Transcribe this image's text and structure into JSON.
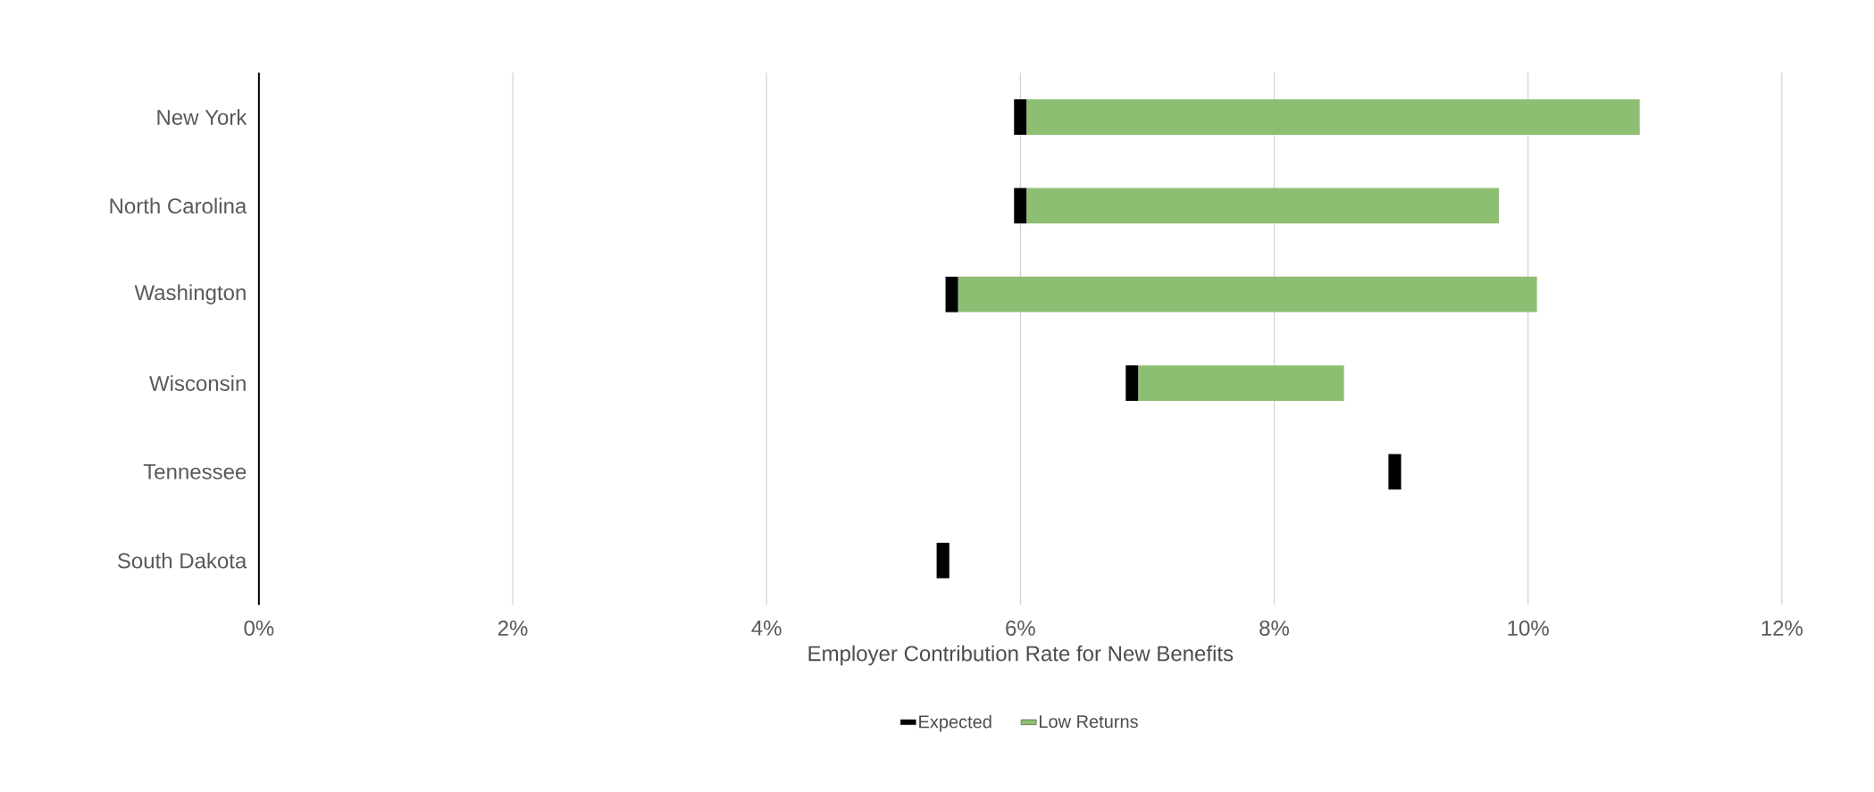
{
  "chart_data": {
    "type": "bar",
    "orientation": "horizontal",
    "xlabel": "Employer Contribution Rate for New Benefits",
    "categories": [
      "New York",
      "North Carolina",
      "Washington",
      "Wisconsin",
      "Tennessee",
      "South Dakota"
    ],
    "series": [
      {
        "name": "Expected",
        "color": "#000000",
        "base": [
          5.95,
          5.95,
          5.41,
          6.83,
          8.9,
          5.34
        ],
        "values": [
          0.1,
          0.1,
          0.1,
          0.1,
          0.1,
          0.1
        ]
      },
      {
        "name": "Low Returns",
        "color": "#8dbf72",
        "base": [
          6.05,
          6.05,
          5.51,
          6.93,
          null,
          null
        ],
        "values": [
          4.83,
          3.72,
          4.56,
          1.62,
          null,
          null
        ]
      }
    ],
    "xlim": [
      0,
      12
    ],
    "xticks": [
      {
        "value": 0,
        "label": "0%"
      },
      {
        "value": 2,
        "label": "2%"
      },
      {
        "value": 4,
        "label": "4%"
      },
      {
        "value": 6,
        "label": "6%"
      },
      {
        "value": 8,
        "label": "8%"
      },
      {
        "value": 10,
        "label": "10%"
      },
      {
        "value": 12,
        "label": "12%"
      }
    ],
    "grid": "x",
    "legend": "bottom"
  }
}
